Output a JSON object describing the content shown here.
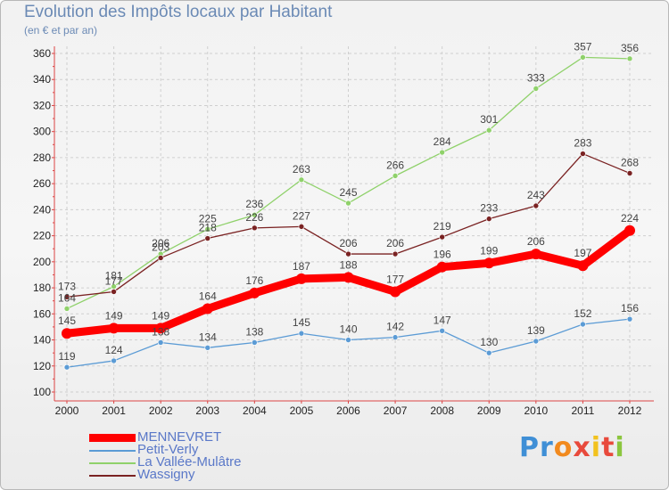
{
  "title": "Evolution des Impôts locaux par Habitant",
  "subtitle": "(en € et par an)",
  "logo_text": "Proxiti",
  "chart_data": {
    "type": "line",
    "title": "Evolution des Impôts locaux par Habitant",
    "subtitle": "(en € et par an)",
    "xlabel": "",
    "ylabel": "",
    "x": [
      "2000",
      "2001",
      "2002",
      "2003",
      "2004",
      "2005",
      "2006",
      "2007",
      "2008",
      "2009",
      "2010",
      "2011",
      "2012"
    ],
    "ylim": [
      100,
      360
    ],
    "yticks": [
      100,
      120,
      140,
      160,
      180,
      200,
      220,
      240,
      260,
      280,
      300,
      320,
      340,
      360
    ],
    "grid": true,
    "legend_position": "bottom-left",
    "series": [
      {
        "name": "MENNEVRET",
        "color": "#ff0000",
        "emphasis": true,
        "values": [
          145,
          149,
          149,
          164,
          176,
          187,
          188,
          177,
          196,
          199,
          206,
          197,
          224
        ]
      },
      {
        "name": "Petit-Verly",
        "color": "#5b9bd5",
        "values": [
          119,
          124,
          138,
          134,
          138,
          145,
          140,
          142,
          147,
          130,
          139,
          152,
          156
        ]
      },
      {
        "name": "La Vallée-Mulâtre",
        "color": "#8fd16a",
        "values": [
          164,
          181,
          206,
          225,
          236,
          263,
          245,
          266,
          284,
          301,
          333,
          357,
          356
        ]
      },
      {
        "name": "Wassigny",
        "color": "#7a2222",
        "values": [
          173,
          177,
          203,
          218,
          226,
          227,
          206,
          206,
          219,
          233,
          243,
          283,
          268
        ]
      }
    ]
  }
}
